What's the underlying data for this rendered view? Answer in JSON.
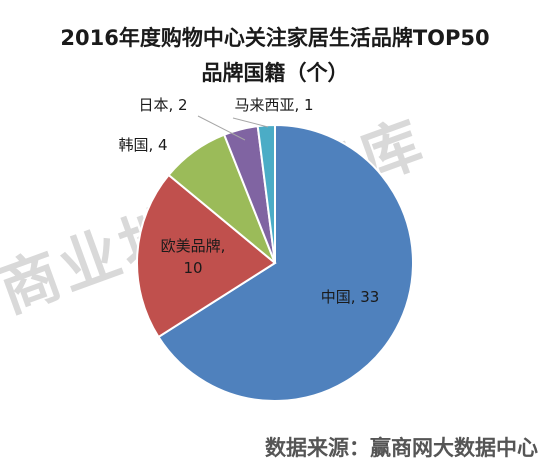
{
  "title_line1": "2016年度购物中心关注家居生活品牌TOP50",
  "title_line2": "品牌国籍（个）",
  "watermark": "商业地产云智库",
  "source": "数据来源：赢商网大数据中心",
  "chart_data": {
    "type": "pie",
    "title": "2016年度购物中心关注家居生活品牌TOP50 品牌国籍（个）",
    "slices": [
      {
        "name": "中国",
        "value": 33,
        "color": "#4f81bd",
        "label": "中国, 33"
      },
      {
        "name": "欧美品牌",
        "value": 10,
        "color": "#c0504d",
        "label_lines": [
          "欧美品牌,",
          "10"
        ]
      },
      {
        "name": "韩国",
        "value": 4,
        "color": "#9bbb59",
        "label": "韩国, 4"
      },
      {
        "name": "日本",
        "value": 2,
        "color": "#8064a2",
        "label": "日本, 2"
      },
      {
        "name": "马来西亚",
        "value": 1,
        "color": "#4bacc6",
        "label": "马来西亚, 1"
      }
    ]
  }
}
